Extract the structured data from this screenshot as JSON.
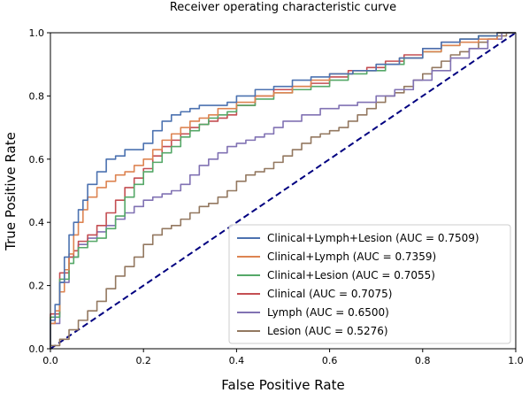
{
  "chart_data": {
    "type": "line",
    "title": "Receiver operating characteristic curve",
    "xlabel": "False Positive Rate",
    "ylabel": "True Positive Rate",
    "xlim": [
      0.0,
      1.0
    ],
    "ylim": [
      0.0,
      1.0
    ],
    "xticks": [
      "0.0",
      "0.2",
      "0.4",
      "0.6",
      "0.8",
      "1.0"
    ],
    "yticks": [
      "0.0",
      "0.2",
      "0.4",
      "0.6",
      "0.8",
      "1.0"
    ],
    "grid": false,
    "legend_position": "lower-right",
    "reference_line": {
      "x": [
        0,
        1
      ],
      "y": [
        0,
        1
      ],
      "color": "#000080",
      "style": "dashed"
    },
    "series": [
      {
        "name": "Clinical+Lymph+Lesion (AUC = 0.7509)",
        "color": "#4c72b0",
        "x": [
          0,
          0.01,
          0.02,
          0.03,
          0.04,
          0.05,
          0.06,
          0.07,
          0.08,
          0.1,
          0.12,
          0.14,
          0.16,
          0.18,
          0.2,
          0.22,
          0.24,
          0.26,
          0.28,
          0.3,
          0.32,
          0.34,
          0.36,
          0.38,
          0.4,
          0.44,
          0.48,
          0.52,
          0.56,
          0.6,
          0.65,
          0.7,
          0.75,
          0.8,
          0.84,
          0.88,
          0.92,
          0.96,
          1.0
        ],
        "y": [
          0,
          0.09,
          0.14,
          0.21,
          0.29,
          0.36,
          0.4,
          0.44,
          0.47,
          0.52,
          0.56,
          0.6,
          0.61,
          0.63,
          0.63,
          0.65,
          0.69,
          0.72,
          0.74,
          0.75,
          0.76,
          0.77,
          0.77,
          0.77,
          0.78,
          0.8,
          0.82,
          0.83,
          0.85,
          0.86,
          0.87,
          0.88,
          0.9,
          0.92,
          0.95,
          0.97,
          0.98,
          0.99,
          1.0
        ]
      },
      {
        "name": "Clinical+Lymph (AUC = 0.7359)",
        "color": "#dd8452",
        "x": [
          0,
          0.01,
          0.02,
          0.03,
          0.04,
          0.05,
          0.06,
          0.07,
          0.08,
          0.1,
          0.12,
          0.14,
          0.16,
          0.18,
          0.2,
          0.22,
          0.24,
          0.26,
          0.28,
          0.3,
          0.32,
          0.34,
          0.36,
          0.4,
          0.44,
          0.48,
          0.52,
          0.56,
          0.6,
          0.65,
          0.7,
          0.75,
          0.8,
          0.84,
          0.88,
          0.92,
          0.96,
          1.0
        ],
        "y": [
          0,
          0.08,
          0.12,
          0.18,
          0.25,
          0.3,
          0.36,
          0.4,
          0.44,
          0.48,
          0.51,
          0.53,
          0.55,
          0.56,
          0.58,
          0.6,
          0.63,
          0.66,
          0.68,
          0.7,
          0.72,
          0.73,
          0.74,
          0.76,
          0.78,
          0.8,
          0.81,
          0.83,
          0.85,
          0.87,
          0.88,
          0.9,
          0.92,
          0.94,
          0.96,
          0.97,
          0.98,
          1.0
        ]
      },
      {
        "name": "Clinical+Lesion (AUC = 0.7055)",
        "color": "#55a868",
        "x": [
          0,
          0.02,
          0.04,
          0.05,
          0.06,
          0.08,
          0.1,
          0.12,
          0.14,
          0.16,
          0.18,
          0.2,
          0.22,
          0.24,
          0.26,
          0.28,
          0.3,
          0.32,
          0.34,
          0.36,
          0.38,
          0.4,
          0.44,
          0.48,
          0.52,
          0.56,
          0.6,
          0.64,
          0.68,
          0.72,
          0.76,
          0.8,
          0.84,
          0.88,
          0.92,
          0.96,
          1.0
        ],
        "y": [
          0,
          0.1,
          0.22,
          0.27,
          0.29,
          0.32,
          0.34,
          0.35,
          0.38,
          0.42,
          0.48,
          0.52,
          0.56,
          0.59,
          0.62,
          0.64,
          0.67,
          0.69,
          0.71,
          0.73,
          0.74,
          0.75,
          0.77,
          0.79,
          0.81,
          0.82,
          0.83,
          0.85,
          0.87,
          0.88,
          0.9,
          0.92,
          0.94,
          0.96,
          0.98,
          0.99,
          1.0
        ]
      },
      {
        "name": "Clinical (AUC = 0.7075)",
        "color": "#c44e52",
        "x": [
          0,
          0.02,
          0.04,
          0.05,
          0.06,
          0.08,
          0.1,
          0.12,
          0.14,
          0.16,
          0.18,
          0.2,
          0.22,
          0.24,
          0.26,
          0.28,
          0.3,
          0.32,
          0.34,
          0.36,
          0.38,
          0.4,
          0.44,
          0.48,
          0.52,
          0.56,
          0.6,
          0.64,
          0.68,
          0.72,
          0.76,
          0.8,
          0.84,
          0.88,
          0.92,
          0.96,
          1.0
        ],
        "y": [
          0,
          0.11,
          0.24,
          0.29,
          0.31,
          0.34,
          0.36,
          0.39,
          0.43,
          0.47,
          0.51,
          0.54,
          0.57,
          0.61,
          0.64,
          0.66,
          0.68,
          0.7,
          0.71,
          0.72,
          0.73,
          0.74,
          0.77,
          0.8,
          0.82,
          0.83,
          0.84,
          0.86,
          0.88,
          0.89,
          0.91,
          0.93,
          0.95,
          0.97,
          0.98,
          0.99,
          1.0
        ]
      },
      {
        "name": "Lymph (AUC = 0.6500)",
        "color": "#8172b3",
        "x": [
          0,
          0.02,
          0.04,
          0.06,
          0.08,
          0.1,
          0.12,
          0.14,
          0.16,
          0.18,
          0.2,
          0.22,
          0.24,
          0.26,
          0.28,
          0.3,
          0.32,
          0.34,
          0.36,
          0.38,
          0.4,
          0.42,
          0.44,
          0.46,
          0.48,
          0.5,
          0.54,
          0.58,
          0.62,
          0.66,
          0.7,
          0.74,
          0.78,
          0.82,
          0.86,
          0.9,
          0.94,
          0.97,
          1.0
        ],
        "y": [
          0,
          0.08,
          0.21,
          0.29,
          0.33,
          0.35,
          0.37,
          0.39,
          0.41,
          0.43,
          0.45,
          0.47,
          0.48,
          0.49,
          0.5,
          0.52,
          0.55,
          0.58,
          0.6,
          0.62,
          0.64,
          0.65,
          0.66,
          0.67,
          0.68,
          0.7,
          0.72,
          0.74,
          0.76,
          0.77,
          0.78,
          0.8,
          0.82,
          0.85,
          0.88,
          0.92,
          0.95,
          0.98,
          1.0
        ]
      },
      {
        "name": "Lesion (AUC = 0.5276)",
        "color": "#937860",
        "x": [
          0,
          0.02,
          0.04,
          0.06,
          0.08,
          0.1,
          0.12,
          0.14,
          0.16,
          0.18,
          0.2,
          0.22,
          0.24,
          0.26,
          0.28,
          0.3,
          0.32,
          0.34,
          0.36,
          0.38,
          0.4,
          0.42,
          0.44,
          0.46,
          0.48,
          0.5,
          0.52,
          0.54,
          0.56,
          0.58,
          0.6,
          0.62,
          0.64,
          0.66,
          0.68,
          0.7,
          0.72,
          0.74,
          0.76,
          0.78,
          0.8,
          0.82,
          0.84,
          0.86,
          0.88,
          0.9,
          0.92,
          0.94,
          0.96,
          0.98,
          1.0
        ],
        "y": [
          0,
          0.01,
          0.03,
          0.06,
          0.09,
          0.12,
          0.15,
          0.19,
          0.23,
          0.26,
          0.29,
          0.33,
          0.36,
          0.38,
          0.39,
          0.41,
          0.43,
          0.45,
          0.46,
          0.48,
          0.5,
          0.53,
          0.55,
          0.56,
          0.57,
          0.59,
          0.61,
          0.63,
          0.65,
          0.67,
          0.68,
          0.69,
          0.7,
          0.72,
          0.74,
          0.76,
          0.78,
          0.8,
          0.81,
          0.83,
          0.85,
          0.87,
          0.89,
          0.91,
          0.93,
          0.94,
          0.95,
          0.97,
          0.98,
          0.99,
          1.0
        ]
      }
    ]
  }
}
